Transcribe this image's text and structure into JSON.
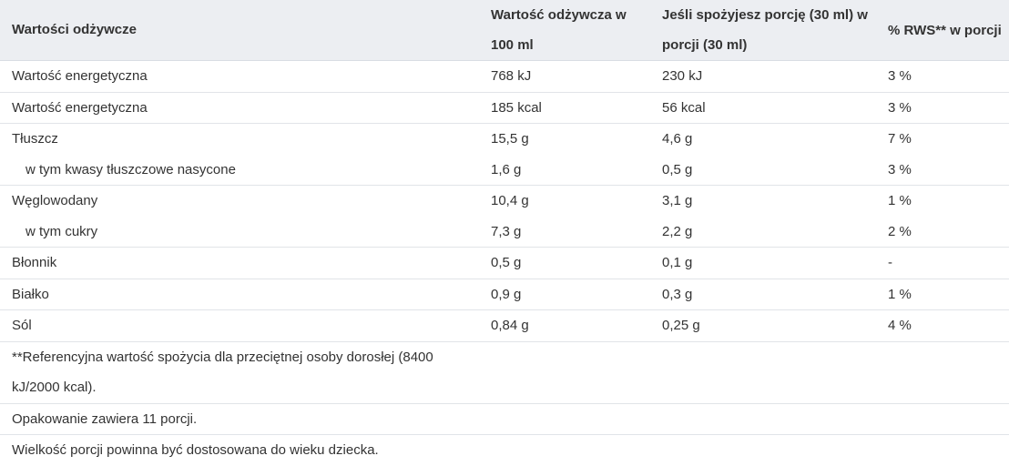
{
  "header": {
    "col1": "Wartości odżywcze",
    "col2": "Wartość odżywcza w 100 ml",
    "col3": "Jeśli spożyjesz porcję (30 ml) w porcji (30 ml)",
    "col4": "% RWS** w porcji"
  },
  "rows": [
    {
      "name": "Wartość energetyczna",
      "per100": "768 kJ",
      "portion": "230 kJ",
      "rws": "3 %"
    },
    {
      "name": "Wartość energetyczna",
      "per100": "185 kcal",
      "portion": "56 kcal",
      "rws": "3 %"
    },
    {
      "name": "Tłuszcz",
      "per100": "15,5 g",
      "portion": "4,6 g",
      "rws": "7 %"
    },
    {
      "name": "w tym kwasy tłuszczowe nasycone",
      "per100": "1,6 g",
      "portion": "0,5 g",
      "rws": "3 %"
    },
    {
      "name": "Węglowodany",
      "per100": "10,4 g",
      "portion": "3,1 g",
      "rws": "1 %"
    },
    {
      "name": "w tym cukry",
      "per100": "7,3 g",
      "portion": "2,2 g",
      "rws": "2 %"
    },
    {
      "name": "Błonnik",
      "per100": "0,5 g",
      "portion": "0,1 g",
      "rws": "-"
    },
    {
      "name": "Białko",
      "per100": "0,9 g",
      "portion": "0,3 g",
      "rws": "1 %"
    },
    {
      "name": "Sól",
      "per100": "0,84 g",
      "portion": "0,25 g",
      "rws": "4 %"
    }
  ],
  "notes": {
    "reference": "**Referencyjna wartość spożycia dla przeciętnej osoby dorosłej (8400 kJ/2000 kcal).",
    "servings": "Opakowanie zawiera 11 porcji.",
    "portion_advice": "Wielkość porcji powinna być dostosowana do wieku dziecka."
  }
}
